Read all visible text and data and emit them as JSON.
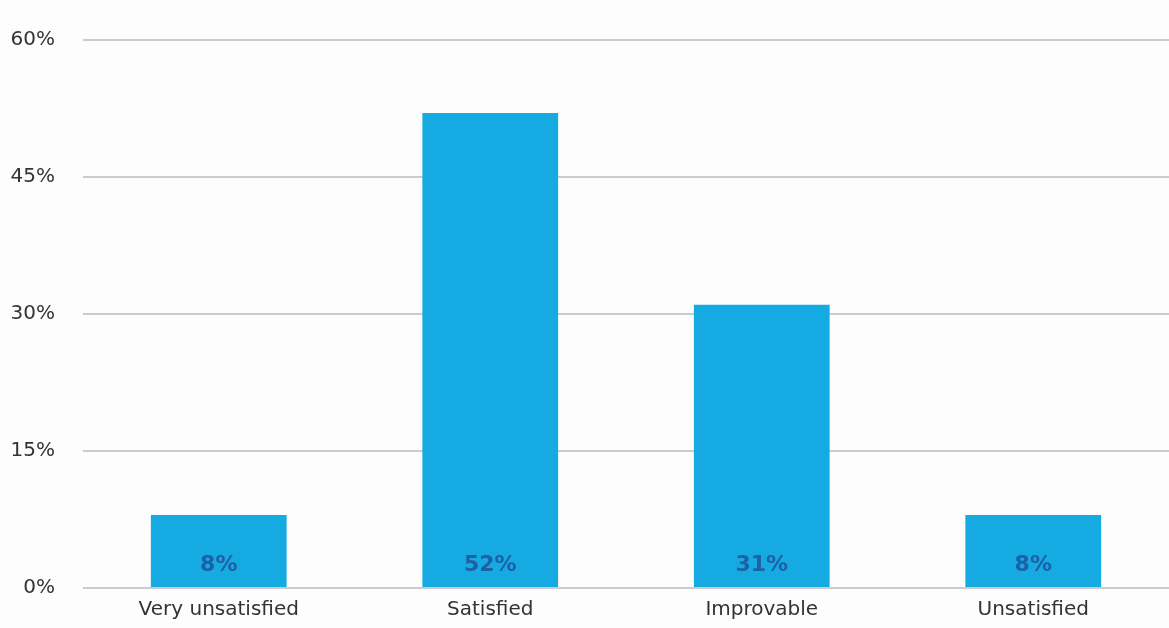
{
  "chart_data": {
    "type": "bar",
    "categories": [
      "Very unsatisfied",
      "Satisfied",
      "Improvable",
      "Unsatisfied"
    ],
    "values": [
      8,
      52,
      31,
      8
    ],
    "value_labels": [
      "8%",
      "52%",
      "31%",
      "8%"
    ],
    "color": "#16aae2",
    "ylim": [
      0,
      60
    ],
    "yticks": [
      {
        "value": 0,
        "label": "0%"
      },
      {
        "value": 15,
        "label": "15%"
      },
      {
        "value": 30,
        "label": "30%"
      },
      {
        "value": 45,
        "label": "45%"
      },
      {
        "value": 60,
        "label": "60%"
      }
    ],
    "grid": "y"
  }
}
